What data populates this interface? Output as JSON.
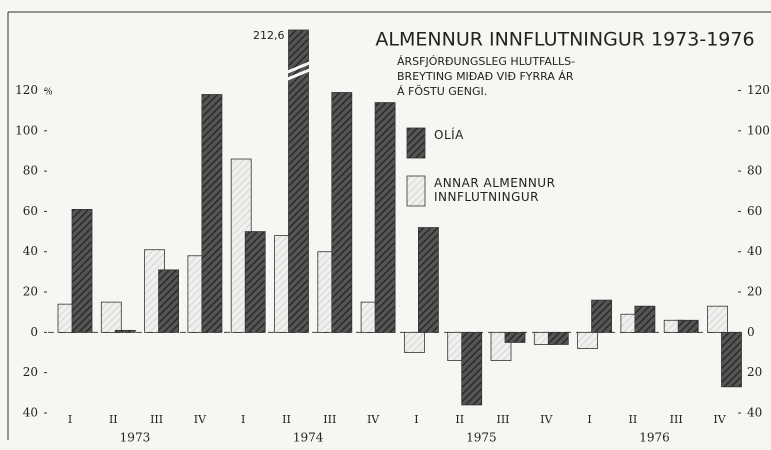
{
  "chart_data": {
    "type": "bar",
    "title": "ALMENNUR INNFLUTNINGUR 1973-1976",
    "subtitle": [
      "ÁRSFJÓRÐUNGSLEG HLUTFALLS-",
      "BREYTING MIÐAÐ VIÐ FYRRA ÁR",
      "Á FÖSTU GENGI."
    ],
    "unit": "%",
    "categories": [
      "I",
      "II",
      "III",
      "IV",
      "I",
      "II",
      "III",
      "IV",
      "I",
      "II",
      "III",
      "IV",
      "I",
      "II",
      "III",
      "IV"
    ],
    "groups": [
      "1973",
      "1974",
      "1975",
      "1976"
    ],
    "series": [
      {
        "name": "ANNAR ALMENNUR INNFLUTNINGUR",
        "color": "#cfcfcf",
        "values": [
          14,
          15,
          41,
          38,
          86,
          48,
          40,
          15,
          -10,
          -14,
          -14,
          -6,
          -8,
          9,
          6,
          13
        ]
      },
      {
        "name": "OLÍA",
        "color": "#555555",
        "values": [
          61,
          1,
          31,
          118,
          50,
          212.6,
          119,
          114,
          52,
          -36,
          -5,
          -6,
          16,
          13,
          6,
          -27
        ],
        "value_labels": [
          null,
          null,
          null,
          null,
          null,
          "212,6",
          null,
          null,
          null,
          null,
          null,
          null,
          null,
          null,
          null,
          null
        ]
      }
    ],
    "ylim": [
      -40,
      150
    ],
    "yticks": [
      {
        "value": -40,
        "label": "40"
      },
      {
        "value": -20,
        "label": "20"
      },
      0,
      20,
      40,
      60,
      80,
      100,
      120
    ],
    "y2lim": [
      -40,
      150
    ],
    "y2ticks": [
      {
        "value": -40,
        "label": "40"
      },
      {
        "value": -20,
        "label": "20"
      },
      0,
      20,
      40,
      60,
      80,
      100,
      120
    ]
  }
}
